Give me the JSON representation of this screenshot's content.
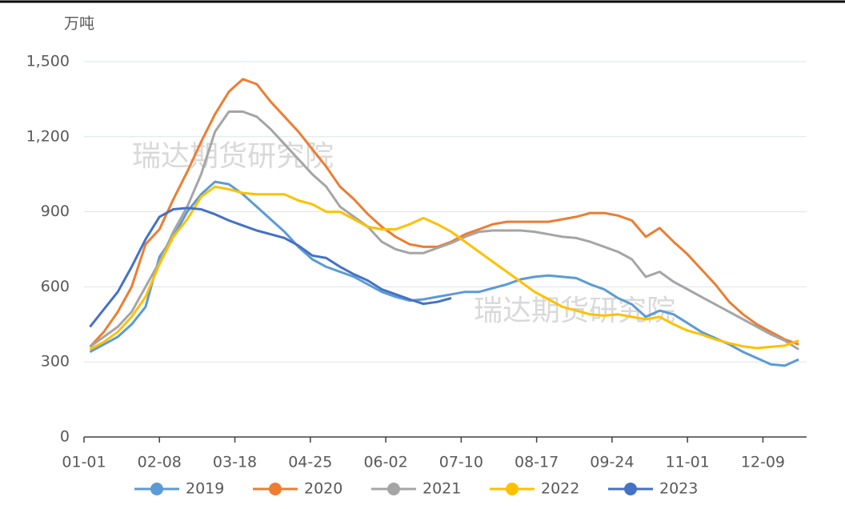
{
  "chart_data": {
    "type": "line",
    "y_axis_label": "万吨",
    "watermarks": [
      "瑞达期货研究院",
      "瑞达期货研究院"
    ],
    "x": [
      3,
      10,
      17,
      24,
      31,
      38,
      45,
      52,
      59,
      66,
      73,
      80,
      87,
      94,
      101,
      108,
      115,
      122,
      129,
      136,
      143,
      150,
      157,
      164,
      171,
      178,
      185,
      192,
      199,
      206,
      213,
      220,
      227,
      234,
      241,
      248,
      255,
      262,
      269,
      276,
      283,
      290,
      297,
      304,
      311,
      318,
      325,
      332,
      339,
      346,
      353,
      360
    ],
    "xlim": [
      0,
      364
    ],
    "xticks": [
      {
        "value": 0,
        "label": "01-01"
      },
      {
        "value": 38,
        "label": "02-08"
      },
      {
        "value": 76,
        "label": "03-18"
      },
      {
        "value": 114,
        "label": "04-25"
      },
      {
        "value": 152,
        "label": "06-02"
      },
      {
        "value": 190,
        "label": "07-10"
      },
      {
        "value": 228,
        "label": "08-17"
      },
      {
        "value": 266,
        "label": "09-24"
      },
      {
        "value": 304,
        "label": "11-01"
      },
      {
        "value": 342,
        "label": "12-09"
      }
    ],
    "ylim": [
      0,
      1500
    ],
    "yticks": [
      0,
      300,
      600,
      900,
      {
        "value": 1200,
        "label": "1,200"
      },
      {
        "value": 1500,
        "label": "1,500"
      }
    ],
    "grid": true,
    "legend": "bottom",
    "series": [
      {
        "name": "2019",
        "color": "#5b9bd5",
        "values": [
          340,
          370,
          400,
          450,
          520,
          720,
          800,
          900,
          970,
          1020,
          1010,
          970,
          920,
          870,
          820,
          760,
          710,
          680,
          660,
          640,
          610,
          580,
          560,
          545,
          550,
          560,
          570,
          580,
          580,
          595,
          610,
          630,
          640,
          645,
          640,
          635,
          610,
          590,
          555,
          530,
          480,
          505,
          490,
          455,
          420,
          395,
          370,
          340,
          315,
          290,
          285,
          310
        ]
      },
      {
        "name": "2020",
        "color": "#ed7d31",
        "values": [
          360,
          420,
          500,
          600,
          770,
          830,
          950,
          1060,
          1180,
          1290,
          1380,
          1430,
          1410,
          1340,
          1280,
          1220,
          1150,
          1080,
          1000,
          950,
          890,
          840,
          800,
          770,
          760,
          760,
          780,
          810,
          830,
          850,
          860,
          860,
          860,
          860,
          870,
          880,
          895,
          895,
          885,
          865,
          800,
          835,
          780,
          730,
          670,
          610,
          540,
          490,
          450,
          420,
          390,
          370
        ]
      },
      {
        "name": "2021",
        "color": "#a5a5a5",
        "values": [
          360,
          400,
          440,
          500,
          600,
          700,
          820,
          920,
          1050,
          1220,
          1300,
          1300,
          1280,
          1230,
          1170,
          1110,
          1050,
          1000,
          920,
          880,
          840,
          780,
          750,
          735,
          735,
          755,
          775,
          800,
          820,
          825,
          825,
          825,
          820,
          810,
          800,
          795,
          780,
          760,
          740,
          710,
          640,
          660,
          620,
          590,
          560,
          530,
          500,
          470,
          440,
          410,
          385,
          350
        ]
      },
      {
        "name": "2022",
        "color": "#ffc000",
        "values": [
          350,
          380,
          420,
          480,
          560,
          690,
          800,
          870,
          960,
          1000,
          990,
          975,
          970,
          970,
          970,
          945,
          930,
          900,
          900,
          870,
          840,
          830,
          830,
          850,
          875,
          850,
          820,
          780,
          740,
          700,
          660,
          620,
          580,
          550,
          520,
          505,
          490,
          485,
          490,
          480,
          470,
          480,
          450,
          425,
          410,
          390,
          375,
          362,
          355,
          360,
          365,
          385
        ]
      },
      {
        "name": "2023",
        "color": "#4472c4",
        "values": [
          440,
          510,
          580,
          680,
          790,
          880,
          910,
          915,
          910,
          890,
          865,
          845,
          825,
          810,
          795,
          765,
          725,
          715,
          680,
          650,
          625,
          590,
          570,
          550,
          532,
          540,
          555,
          null,
          null,
          null,
          null,
          null,
          null,
          null,
          null,
          null,
          null,
          null,
          null,
          null,
          null,
          null,
          null,
          null,
          null,
          null,
          null,
          null,
          null,
          null,
          null,
          null
        ]
      }
    ]
  }
}
